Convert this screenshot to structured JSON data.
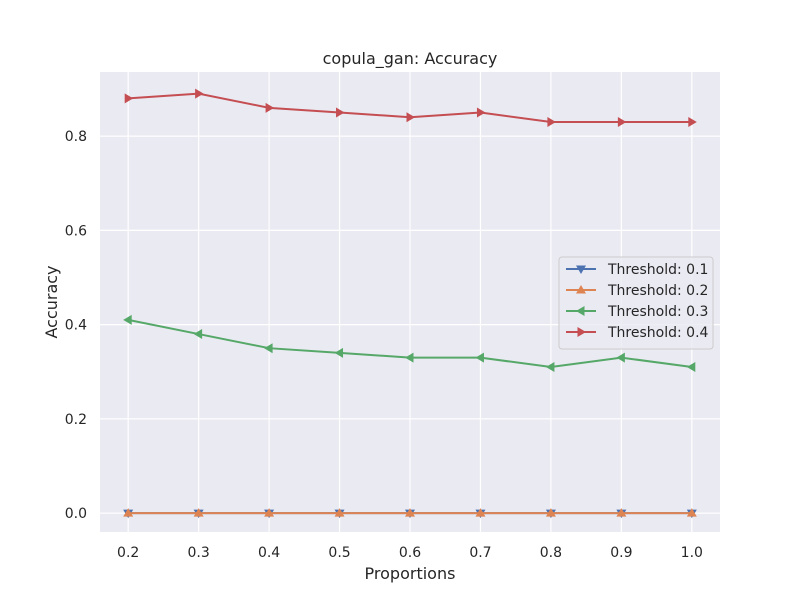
{
  "chart_data": {
    "type": "line",
    "title": "copula_gan: Accuracy",
    "xlabel": "Proportions",
    "ylabel": "Accuracy",
    "x": [
      0.2,
      0.3,
      0.4,
      0.5,
      0.6,
      0.7,
      0.8,
      0.9,
      1.0
    ],
    "xticks": [
      "0.2",
      "0.3",
      "0.4",
      "0.5",
      "0.6",
      "0.7",
      "0.8",
      "0.9",
      "1.0"
    ],
    "yticks": [
      "0.0",
      "0.2",
      "0.4",
      "0.6",
      "0.8"
    ],
    "xlim": [
      0.16,
      1.04
    ],
    "ylim": [
      -0.04,
      0.936
    ],
    "grid": true,
    "legend_position": "center-right",
    "series": [
      {
        "name": "Threshold: 0.1",
        "color": "#4c72b0",
        "marker": "triangle-down",
        "values": [
          0,
          0,
          0,
          0,
          0,
          0,
          0,
          0,
          0
        ]
      },
      {
        "name": "Threshold: 0.2",
        "color": "#dd8452",
        "marker": "triangle-up",
        "values": [
          0,
          0,
          0,
          0,
          0,
          0,
          0,
          0,
          0
        ]
      },
      {
        "name": "Threshold: 0.3",
        "color": "#55a868",
        "marker": "triangle-left",
        "values": [
          0.41,
          0.38,
          0.35,
          0.34,
          0.33,
          0.33,
          0.31,
          0.33,
          0.31
        ]
      },
      {
        "name": "Threshold: 0.4",
        "color": "#c44e52",
        "marker": "triangle-right",
        "values": [
          0.88,
          0.89,
          0.86,
          0.85,
          0.84,
          0.85,
          0.83,
          0.83,
          0.83
        ]
      }
    ]
  }
}
